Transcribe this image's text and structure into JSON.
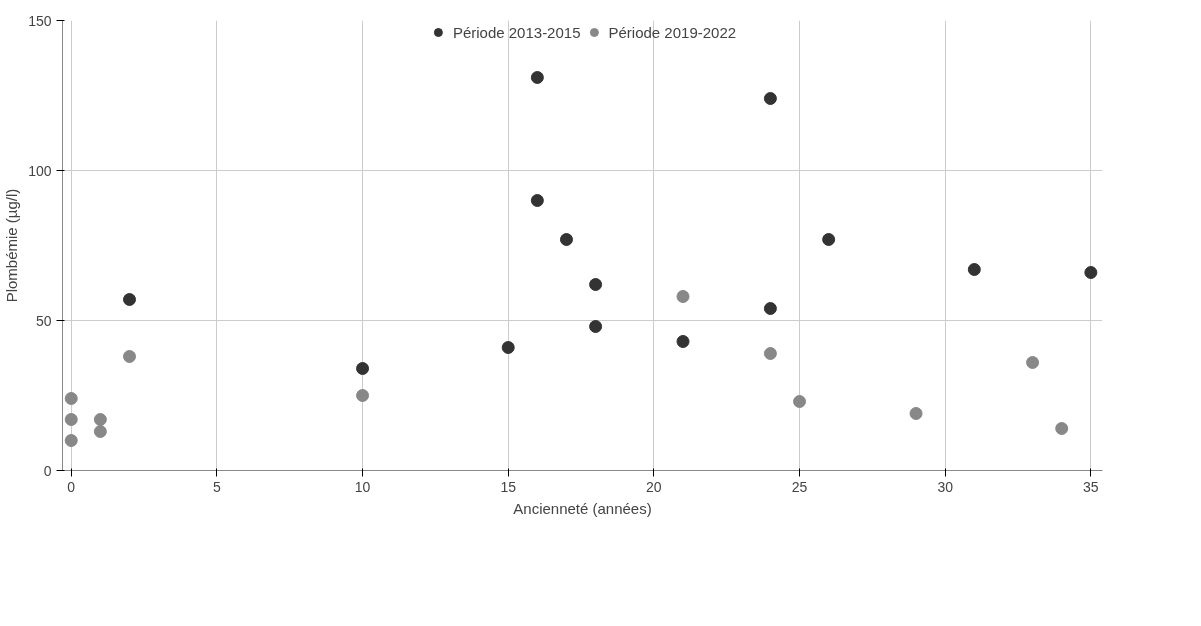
{
  "chart_data": {
    "type": "scatter",
    "xlabel": "Ancienneté (années)",
    "ylabel": "Plombémie (µg/l)",
    "series": [
      {
        "name": "Période 2013-2015",
        "color": "#333333",
        "x": [
          2,
          10,
          15,
          16,
          16,
          17,
          18,
          18,
          21,
          24,
          24,
          26,
          31,
          35
        ],
        "values": [
          57,
          34,
          41,
          131,
          90,
          77,
          62,
          48,
          43,
          124,
          54,
          77,
          67,
          66
        ]
      },
      {
        "name": "Période 2019-2022",
        "color": "#888888",
        "x": [
          0,
          0,
          0,
          1,
          1,
          2,
          10,
          21,
          24,
          25,
          29,
          33,
          34
        ],
        "values": [
          24,
          17,
          10,
          17,
          13,
          38,
          25,
          58,
          39,
          23,
          19,
          36,
          14
        ]
      }
    ],
    "xlim": [
      -0.3,
      35.4
    ],
    "ylim": [
      0,
      150
    ],
    "xticks": [
      0,
      5,
      10,
      15,
      20,
      25,
      30,
      35
    ],
    "yticks": [
      0,
      50,
      100,
      150
    ],
    "grid": true,
    "legend": "top",
    "marker": "circle"
  }
}
